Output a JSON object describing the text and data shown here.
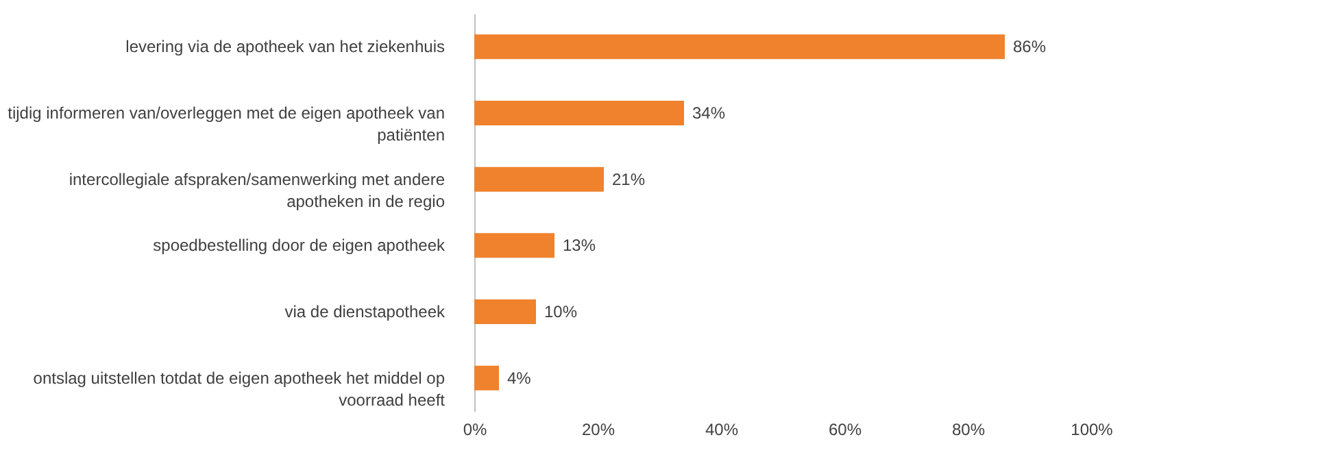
{
  "chart_data": {
    "type": "bar",
    "orientation": "horizontal",
    "categories": [
      "levering via de apotheek van het ziekenhuis",
      "tijdig informeren van/overleggen met de eigen apotheek van patiënten",
      "intercollegiale afspraken/samenwerking met andere apotheken in de regio",
      "spoedbestelling door de eigen apotheek",
      "via de dienstapotheek",
      "ontslag uitstellen totdat de eigen apotheek het middel op voorraad heeft"
    ],
    "values": [
      86,
      34,
      21,
      13,
      10,
      4
    ],
    "value_labels": [
      "86%",
      "34%",
      "21%",
      "13%",
      "10%",
      "4%"
    ],
    "color": "#f0822d",
    "xlim": [
      0,
      100
    ],
    "xticks": [
      {
        "value": 0,
        "label": "0%"
      },
      {
        "value": 20,
        "label": "20%"
      },
      {
        "value": 40,
        "label": "40%"
      },
      {
        "value": 60,
        "label": "60%"
      },
      {
        "value": 80,
        "label": "80%"
      },
      {
        "value": 100,
        "label": "100%"
      }
    ],
    "grid": false
  }
}
